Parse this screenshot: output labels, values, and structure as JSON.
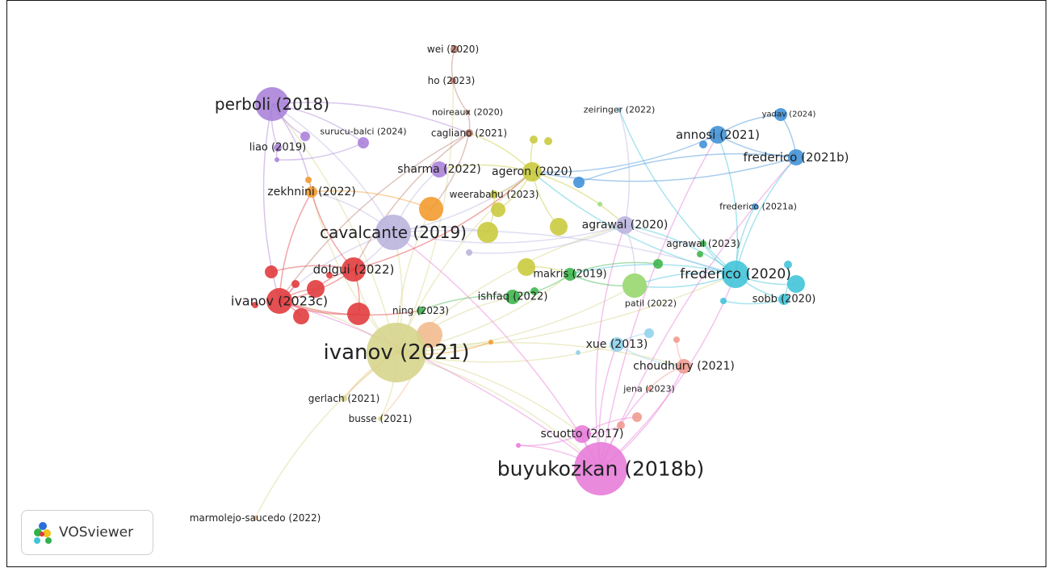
{
  "app": {
    "name": "VOSviewer"
  },
  "colors": {
    "red": "#e0383a",
    "orange": "#f2982a",
    "yellow": "#c8c93a",
    "green": "#3bb54a",
    "lightgreen": "#9fdb7a",
    "purple": "#a97fd8",
    "lilac": "#b9b3dd",
    "brown": "#b87a6a",
    "blue": "#3d8fd6",
    "cyan": "#3fc3d8",
    "pink": "#e77ad8",
    "salmon": "#ee9a8d",
    "lightblue": "#8fd0ec",
    "khaki": "#d6d48a",
    "peach": "#f1b98c"
  },
  "nodes": [
    {
      "id": "ivanov2021",
      "label": "ivanov (2021)",
      "cluster": "khaki"
    },
    {
      "id": "buyukozkan2018b",
      "label": "buyukozkan (2018b)",
      "cluster": "pink"
    },
    {
      "id": "cavalcante2019",
      "label": "cavalcante (2019)",
      "cluster": "lilac"
    },
    {
      "id": "perboli2018",
      "label": "perboli (2018)",
      "cluster": "purple"
    },
    {
      "id": "frederico2020",
      "label": "frederico (2020)",
      "cluster": "cyan"
    },
    {
      "id": "ivanov2023c",
      "label": "ivanov (2023c)",
      "cluster": "red"
    },
    {
      "id": "dolgui2022",
      "label": "dolgui (2022)",
      "cluster": "red"
    },
    {
      "id": "ageron2020",
      "label": "ageron (2020)",
      "cluster": "yellow"
    },
    {
      "id": "agrawal2020",
      "label": "agrawal (2020)",
      "cluster": "lilac"
    },
    {
      "id": "annosi2021",
      "label": "annosi (2021)",
      "cluster": "blue"
    },
    {
      "id": "frederico2021b",
      "label": "frederico (2021b)",
      "cluster": "blue"
    },
    {
      "id": "sharma2022",
      "label": "sharma (2022)",
      "cluster": "purple"
    },
    {
      "id": "zekhnini2022",
      "label": "zekhnini (2022)",
      "cluster": "orange"
    },
    {
      "id": "scuotto2017",
      "label": "scuotto (2017)",
      "cluster": "pink"
    },
    {
      "id": "choudhury2021",
      "label": "choudhury (2021)",
      "cluster": "salmon"
    },
    {
      "id": "xue2013",
      "label": "xue (2013)",
      "cluster": "lightblue"
    },
    {
      "id": "makris2019",
      "label": "makris (2019)",
      "cluster": "green"
    },
    {
      "id": "ishfaq2022",
      "label": "ishfaq (2022)",
      "cluster": "green"
    },
    {
      "id": "sobb2020",
      "label": "sobb (2020)",
      "cluster": "cyan"
    },
    {
      "id": "liao2019",
      "label": "liao (2019)",
      "cluster": "purple"
    },
    {
      "id": "ho2023",
      "label": "ho (2023)",
      "cluster": "brown"
    },
    {
      "id": "wei2020",
      "label": "wei (2020)",
      "cluster": "brown"
    },
    {
      "id": "noireaux2020",
      "label": "noireaux (2020)",
      "cluster": "brown"
    },
    {
      "id": "cagliano2021",
      "label": "cagliano (2021)",
      "cluster": "brown"
    },
    {
      "id": "surucubalci2024",
      "label": "surucu-balci (2024)",
      "cluster": "purple"
    },
    {
      "id": "zeiringer2022",
      "label": "zeiringer (2022)",
      "cluster": "lightblue"
    },
    {
      "id": "yadav2024",
      "label": "yadav (2024)",
      "cluster": "blue"
    },
    {
      "id": "frederico2021a",
      "label": "frederico (2021a)",
      "cluster": "blue"
    },
    {
      "id": "agrawal2023",
      "label": "agrawal (2023)",
      "cluster": "green"
    },
    {
      "id": "weerabahu2023",
      "label": "weerabahu (2023)",
      "cluster": "yellow"
    },
    {
      "id": "patil2022",
      "label": "patil (2022)",
      "cluster": "lightgreen"
    },
    {
      "id": "ning2023",
      "label": "ning (2023)",
      "cluster": "green"
    },
    {
      "id": "jena2023",
      "label": "jena (2023)",
      "cluster": "salmon"
    },
    {
      "id": "gerlach2021",
      "label": "gerlach (2021)",
      "cluster": "khaki"
    },
    {
      "id": "busse2021",
      "label": "busse (2021)",
      "cluster": "khaki"
    },
    {
      "id": "marmolejosaucedo2022",
      "label": "marmolejo-saucedo (2022)",
      "cluster": "peach"
    },
    {
      "id": "u_orange_big",
      "label": "",
      "cluster": "orange"
    },
    {
      "id": "u_peach_big",
      "label": "",
      "cluster": "peach"
    },
    {
      "id": "u_yellow_a",
      "label": "",
      "cluster": "yellow"
    },
    {
      "id": "u_yellow_b",
      "label": "",
      "cluster": "yellow"
    },
    {
      "id": "u_yellow_c",
      "label": "",
      "cluster": "yellow"
    },
    {
      "id": "u_yellow_d",
      "label": "",
      "cluster": "yellow"
    },
    {
      "id": "u_yellow_e",
      "label": "",
      "cluster": "yellow"
    },
    {
      "id": "u_yellow_f",
      "label": "",
      "cluster": "yellow"
    },
    {
      "id": "u_red_a",
      "label": "",
      "cluster": "red"
    },
    {
      "id": "u_red_b",
      "label": "",
      "cluster": "red"
    },
    {
      "id": "u_red_c",
      "label": "",
      "cluster": "red"
    },
    {
      "id": "u_red_d",
      "label": "",
      "cluster": "red"
    },
    {
      "id": "u_red_e",
      "label": "",
      "cluster": "red"
    },
    {
      "id": "u_red_f",
      "label": "",
      "cluster": "red"
    },
    {
      "id": "u_red_g",
      "label": "",
      "cluster": "red"
    },
    {
      "id": "u_purple_a",
      "label": "",
      "cluster": "purple"
    },
    {
      "id": "u_purple_b",
      "label": "",
      "cluster": "purple"
    },
    {
      "id": "u_orange_a",
      "label": "",
      "cluster": "orange"
    },
    {
      "id": "u_orange_b",
      "label": "",
      "cluster": "orange"
    },
    {
      "id": "u_lightgreen_big",
      "label": "",
      "cluster": "lightgreen"
    },
    {
      "id": "u_green_a",
      "label": "",
      "cluster": "green"
    },
    {
      "id": "u_green_b",
      "label": "",
      "cluster": "green"
    },
    {
      "id": "u_green_c",
      "label": "",
      "cluster": "green"
    },
    {
      "id": "u_cyan_a",
      "label": "",
      "cluster": "cyan"
    },
    {
      "id": "u_cyan_b",
      "label": "",
      "cluster": "cyan"
    },
    {
      "id": "u_cyan_c",
      "label": "",
      "cluster": "cyan"
    },
    {
      "id": "u_blue_a",
      "label": "",
      "cluster": "blue"
    },
    {
      "id": "u_blue_b",
      "label": "",
      "cluster": "blue"
    },
    {
      "id": "u_lightblue_a",
      "label": "",
      "cluster": "lightblue"
    },
    {
      "id": "u_lightblue_b",
      "label": "",
      "cluster": "lightblue"
    },
    {
      "id": "u_salmon_a",
      "label": "",
      "cluster": "salmon"
    },
    {
      "id": "u_salmon_b",
      "label": "",
      "cluster": "salmon"
    },
    {
      "id": "u_salmon_c",
      "label": "",
      "cluster": "salmon"
    },
    {
      "id": "u_pink_a",
      "label": "",
      "cluster": "pink"
    },
    {
      "id": "u_lightgreen_a",
      "label": "",
      "cluster": "lightgreen"
    },
    {
      "id": "u_lilac_a",
      "label": "",
      "cluster": "lilac"
    }
  ],
  "edges": [
    [
      "ivanov2021",
      "buyukozkan2018b"
    ],
    [
      "ivanov2021",
      "cavalcante2019"
    ],
    [
      "ivanov2021",
      "dolgui2022"
    ],
    [
      "ivanov2021",
      "ivanov2023c"
    ],
    [
      "ivanov2021",
      "ageron2020"
    ],
    [
      "ivanov2021",
      "frederico2020"
    ],
    [
      "ivanov2021",
      "scuotto2017"
    ],
    [
      "ivanov2021",
      "gerlach2021"
    ],
    [
      "ivanov2021",
      "busse2021"
    ],
    [
      "ivanov2021",
      "marmolejosaucedo2022"
    ],
    [
      "ivanov2021",
      "ishfaq2022"
    ],
    [
      "ivanov2021",
      "makris2019"
    ],
    [
      "ivanov2021",
      "choudhury2021"
    ],
    [
      "ivanov2021",
      "xue2013"
    ],
    [
      "ivanov2021",
      "zekhnini2022"
    ],
    [
      "ivanov2021",
      "perboli2018"
    ],
    [
      "ivanov2021",
      "u_orange_big"
    ],
    [
      "ivanov2021",
      "ho2023"
    ],
    [
      "ivanov2021",
      "agrawal2020"
    ],
    [
      "ivanov2021",
      "u_lightgreen_big"
    ],
    [
      "buyukozkan2018b",
      "scuotto2017"
    ],
    [
      "buyukozkan2018b",
      "frederico2020"
    ],
    [
      "buyukozkan2018b",
      "xue2013"
    ],
    [
      "buyukozkan2018b",
      "choudhury2021"
    ],
    [
      "buyukozkan2018b",
      "agrawal2020"
    ],
    [
      "buyukozkan2018b",
      "cavalcante2019"
    ],
    [
      "buyukozkan2018b",
      "frederico2021b"
    ],
    [
      "buyukozkan2018b",
      "ivanov2023c"
    ],
    [
      "buyukozkan2018b",
      "jena2023"
    ],
    [
      "buyukozkan2018b",
      "u_pink_a"
    ],
    [
      "buyukozkan2018b",
      "annosi2021"
    ],
    [
      "cavalcante2019",
      "ivanov2023c"
    ],
    [
      "cavalcante2019",
      "dolgui2022"
    ],
    [
      "cavalcante2019",
      "ageron2020"
    ],
    [
      "cavalcante2019",
      "frederico2020"
    ],
    [
      "cavalcante2019",
      "perboli2018"
    ],
    [
      "cavalcante2019",
      "sharma2022"
    ],
    [
      "cavalcante2019",
      "zekhnini2022"
    ],
    [
      "cavalcante2019",
      "u_yellow_a"
    ],
    [
      "cavalcante2019",
      "agrawal2020"
    ],
    [
      "perboli2018",
      "surucubalci2024"
    ],
    [
      "perboli2018",
      "liao2019"
    ],
    [
      "perboli2018",
      "cagliano2021"
    ],
    [
      "perboli2018",
      "u_purple_a"
    ],
    [
      "perboli2018",
      "zekhnini2022"
    ],
    [
      "perboli2018",
      "ivanov2023c"
    ],
    [
      "frederico2020",
      "frederico2021a"
    ],
    [
      "frederico2020",
      "sobb2020"
    ],
    [
      "frederico2020",
      "agrawal2023"
    ],
    [
      "frederico2020",
      "annosi2021"
    ],
    [
      "frederico2020",
      "frederico2021b"
    ],
    [
      "frederico2020",
      "patil2022"
    ],
    [
      "frederico2020",
      "ageron2020"
    ],
    [
      "frederico2020",
      "makris2019"
    ],
    [
      "frederico2020",
      "zeiringer2022"
    ],
    [
      "frederico2020",
      "agrawal2020"
    ],
    [
      "frederico2020",
      "u_lightgreen_big"
    ],
    [
      "frederico2020",
      "u_cyan_a"
    ],
    [
      "annosi2021",
      "yadav2024"
    ],
    [
      "annosi2021",
      "frederico2021b"
    ],
    [
      "annosi2021",
      "ageron2020"
    ],
    [
      "frederico2021b",
      "yadav2024"
    ],
    [
      "frederico2021b",
      "ageron2020"
    ],
    [
      "frederico2021b",
      "u_blue_a"
    ],
    [
      "dolgui2022",
      "ivanov2023c"
    ],
    [
      "dolgui2022",
      "u_red_a"
    ],
    [
      "dolgui2022",
      "u_red_b"
    ],
    [
      "dolgui2022",
      "u_red_c"
    ],
    [
      "dolgui2022",
      "zekhnini2022"
    ],
    [
      "dolgui2022",
      "ageron2020"
    ],
    [
      "ivanov2023c",
      "u_red_a"
    ],
    [
      "ivanov2023c",
      "u_red_b"
    ],
    [
      "ivanov2023c",
      "u_red_d"
    ],
    [
      "ivanov2023c",
      "u_red_e"
    ],
    [
      "ivanov2023c",
      "zekhnini2022"
    ],
    [
      "ivanov2023c",
      "ning2023"
    ],
    [
      "ageron2020",
      "weerabahu2023"
    ],
    [
      "ageron2020",
      "sharma2022"
    ],
    [
      "ageron2020",
      "u_yellow_b"
    ],
    [
      "ageron2020",
      "u_yellow_c"
    ],
    [
      "ageron2020",
      "agrawal2020"
    ],
    [
      "ageron2020",
      "cagliano2021"
    ],
    [
      "ho2023",
      "wei2020"
    ],
    [
      "ho2023",
      "noireaux2020"
    ],
    [
      "noireaux2020",
      "cagliano2021"
    ],
    [
      "cagliano2021",
      "ivanov2023c"
    ],
    [
      "cagliano2021",
      "u_orange_big"
    ],
    [
      "cagliano2021",
      "dolgui2022"
    ],
    [
      "zekhnini2022",
      "u_orange_big"
    ],
    [
      "zekhnini2022",
      "u_orange_a"
    ],
    [
      "makris2019",
      "ishfaq2022"
    ],
    [
      "makris2019",
      "patil2022"
    ],
    [
      "makris2019",
      "u_green_a"
    ],
    [
      "ishfaq2022",
      "ning2023"
    ],
    [
      "ishfaq2022",
      "u_green_b"
    ],
    [
      "agrawal2020",
      "agrawal2023"
    ],
    [
      "agrawal2020",
      "patil2022"
    ],
    [
      "agrawal2020",
      "zeiringer2022"
    ],
    [
      "scuotto2017",
      "u_salmon_a"
    ],
    [
      "scuotto2017",
      "u_salmon_b"
    ],
    [
      "scuotto2017",
      "u_pink_a"
    ],
    [
      "xue2013",
      "choudhury2021"
    ],
    [
      "xue2013",
      "u_lightblue_a"
    ],
    [
      "choudhury2021",
      "jena2023"
    ],
    [
      "choudhury2021",
      "u_salmon_c"
    ],
    [
      "sobb2020",
      "u_cyan_b"
    ],
    [
      "sobb2020",
      "u_cyan_c"
    ],
    [
      "u_yellow_a",
      "weerabahu2023"
    ],
    [
      "u_yellow_d",
      "makris2019"
    ],
    [
      "u_yellow_e",
      "ageron2020"
    ],
    [
      "surucubalci2024",
      "u_purple_b"
    ],
    [
      "liao2019",
      "u_purple_b"
    ],
    [
      "u_peach_big",
      "busse2021"
    ],
    [
      "u_peach_big",
      "gerlach2021"
    ],
    [
      "u_orange_b",
      "ivanov2021"
    ],
    [
      "u_lilac_a",
      "agrawal2020"
    ]
  ]
}
